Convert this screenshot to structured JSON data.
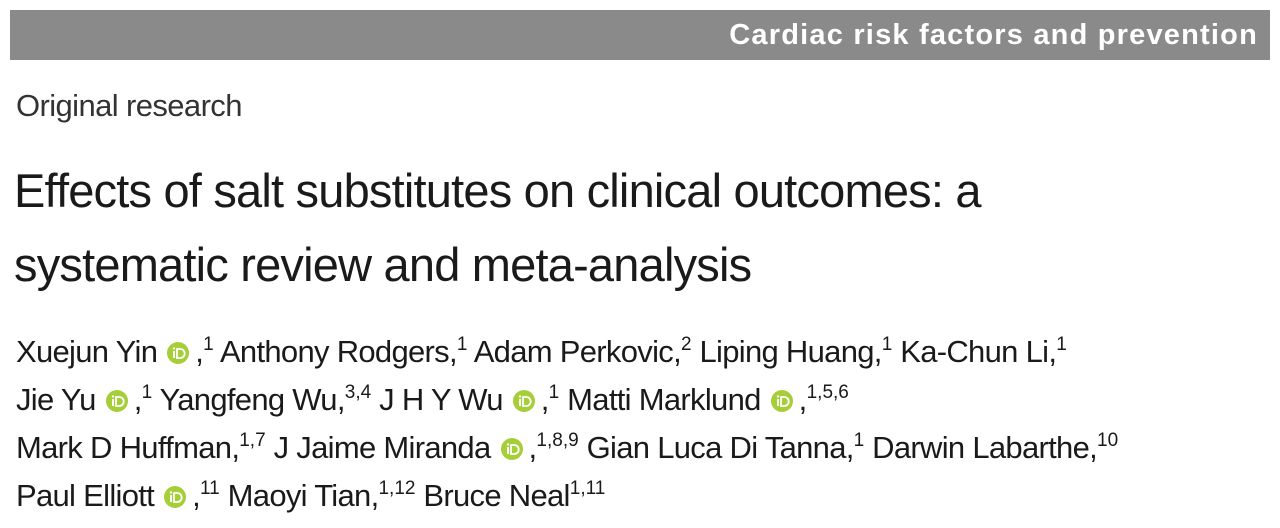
{
  "header": {
    "section": "Cardiac risk factors and prevention"
  },
  "article_type": "Original research",
  "title_lines": [
    "Effects of salt substitutes on clinical outcomes: a",
    "systematic review and meta-analysis"
  ],
  "author_lines": [
    [
      {
        "name": "Xuejun Yin",
        "orcid": true,
        "separator": ",",
        "affiliations": "1"
      },
      {
        "name": "Anthony Rodgers",
        "orcid": false,
        "separator": ",",
        "affiliations": "1"
      },
      {
        "name": "Adam Perkovic",
        "orcid": false,
        "separator": ",",
        "affiliations": "2"
      },
      {
        "name": "Liping Huang",
        "orcid": false,
        "separator": ",",
        "affiliations": "1"
      },
      {
        "name": "Ka-Chun Li",
        "orcid": false,
        "separator": ",",
        "affiliations": "1"
      }
    ],
    [
      {
        "name": "Jie Yu",
        "orcid": true,
        "separator": ",",
        "affiliations": "1"
      },
      {
        "name": "Yangfeng Wu",
        "orcid": false,
        "separator": ",",
        "affiliations": "3,4"
      },
      {
        "name": "J H Y Wu",
        "orcid": true,
        "separator": ",",
        "affiliations": "1"
      },
      {
        "name": "Matti Marklund",
        "orcid": true,
        "separator": ",",
        "affiliations": "1,5,6"
      }
    ],
    [
      {
        "name": "Mark D Huffman",
        "orcid": false,
        "separator": ",",
        "affiliations": "1,7"
      },
      {
        "name": "J Jaime Miranda",
        "orcid": true,
        "separator": ",",
        "affiliations": "1,8,9"
      },
      {
        "name": "Gian Luca Di Tanna",
        "orcid": false,
        "separator": ",",
        "affiliations": "1"
      },
      {
        "name": "Darwin Labarthe",
        "orcid": false,
        "separator": ",",
        "affiliations": "10"
      }
    ],
    [
      {
        "name": "Paul Elliott",
        "orcid": true,
        "separator": ",",
        "affiliations": "11"
      },
      {
        "name": "Maoyi Tian",
        "orcid": false,
        "separator": ",",
        "affiliations": "1,12"
      },
      {
        "name": "Bruce Neal",
        "orcid": false,
        "affiliations": "1,11"
      }
    ]
  ]
}
